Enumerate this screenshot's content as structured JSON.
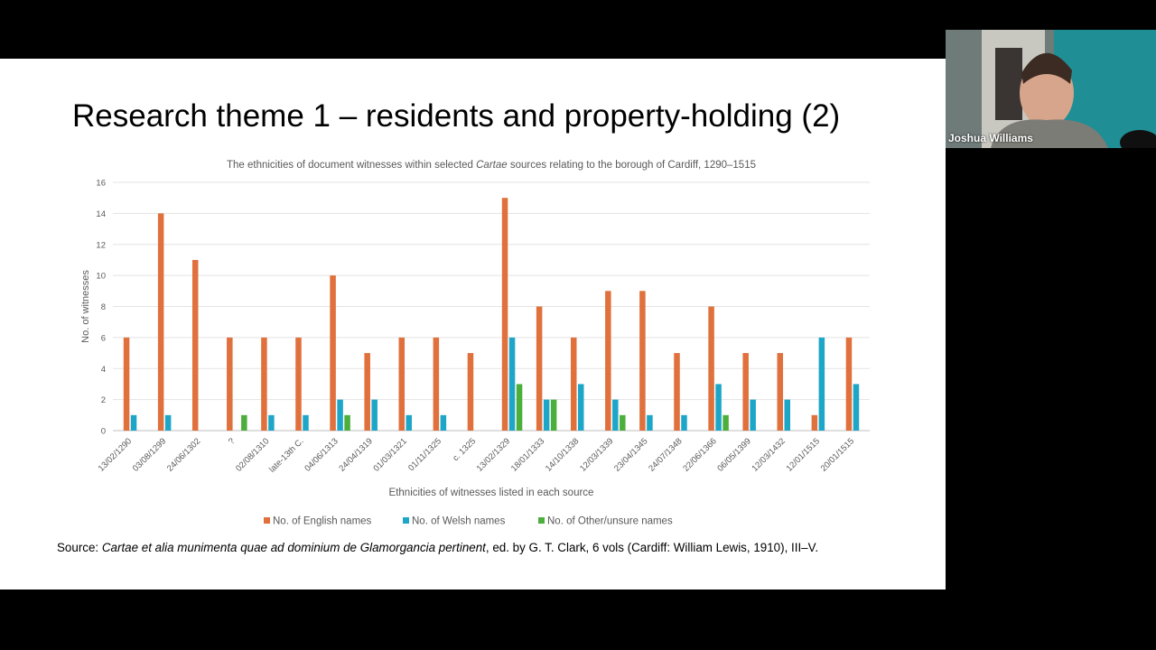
{
  "slide": {
    "title": "Research theme 1 – residents and property-holding (2)",
    "source_prefix": "Source: ",
    "source_title": "Cartae et alia munimenta quae ad dominium de Glamorgancia pertinent",
    "source_suffix": ", ed. by G. T. Clark, 6 vols (Cardiff: William Lewis, 1910), III–V."
  },
  "chart_data": {
    "type": "bar",
    "title_before": "The ethnicities of document witnesses within selected ",
    "title_italic": "Cartae",
    "title_after": " sources relating to the borough of Cardiff, 1290–1515",
    "xlabel": "Ethnicities of witnesses listed in each source",
    "ylabel": "No. of witnesses",
    "ylim": [
      0,
      16
    ],
    "yticks": [
      0,
      2,
      4,
      6,
      8,
      10,
      12,
      14,
      16
    ],
    "grid": true,
    "legend_position": "bottom",
    "categories": [
      "13/02/1290",
      "03/08/1299",
      "24/06/1302",
      "?",
      "02/08/1310",
      "late-13th C.",
      "04/06/1313",
      "24/04/1319",
      "01/03/1321",
      "01/11/1325",
      "c. 1325",
      "13/02/1329",
      "18/01/1333",
      "14/10/1338",
      "12/03/1339",
      "23/04/1345",
      "24/07/1348",
      "22/06/1366",
      "06/05/1399",
      "12/03/1432",
      "12/01/1515",
      "20/01/1515"
    ],
    "series": [
      {
        "name": "No. of English names",
        "color": "#e0703c",
        "values": [
          6,
          14,
          11,
          6,
          6,
          6,
          10,
          5,
          6,
          6,
          5,
          15,
          8,
          6,
          9,
          9,
          5,
          8,
          5,
          5,
          1,
          6
        ]
      },
      {
        "name": "No. of Welsh names",
        "color": "#1ea6c8",
        "values": [
          1,
          1,
          0,
          0,
          1,
          1,
          2,
          2,
          1,
          1,
          0,
          6,
          2,
          3,
          2,
          1,
          1,
          3,
          2,
          2,
          6,
          3
        ]
      },
      {
        "name": "No. of Other/unsure names",
        "color": "#4cae3c",
        "values": [
          0,
          0,
          0,
          1,
          0,
          0,
          1,
          0,
          0,
          0,
          0,
          3,
          2,
          0,
          1,
          0,
          0,
          1,
          0,
          0,
          0,
          0
        ]
      }
    ]
  },
  "webcam": {
    "participant_name": "Joshua Williams"
  }
}
